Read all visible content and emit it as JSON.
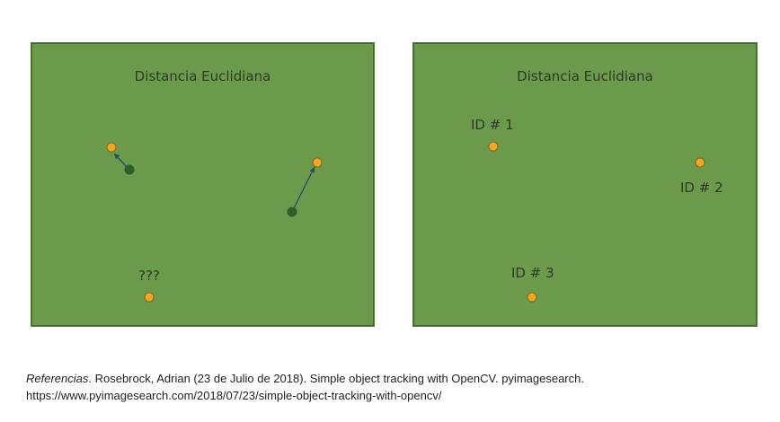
{
  "left_panel": {
    "title": "Distancia Euclidiana",
    "unknown_label": "???"
  },
  "right_panel": {
    "title": "Distancia Euclidiana",
    "id_labels": [
      "ID # 1",
      "ID # 2",
      "ID # 3"
    ]
  },
  "reference": {
    "lead": "Referencias",
    "citation": ". Rosebrock, Adrian (23  de Julio de 2018). Simple object tracking with OpenCV. pyimagesearch.",
    "url": "https://www.pyimagesearch.com/2018/07/23/simple-object-tracking-with-opencv/"
  },
  "colors": {
    "panel_green": "#6a9a4a",
    "new_point": "#f5a623",
    "old_point": "#2e5e2a",
    "arrow": "#2b4a6b"
  }
}
